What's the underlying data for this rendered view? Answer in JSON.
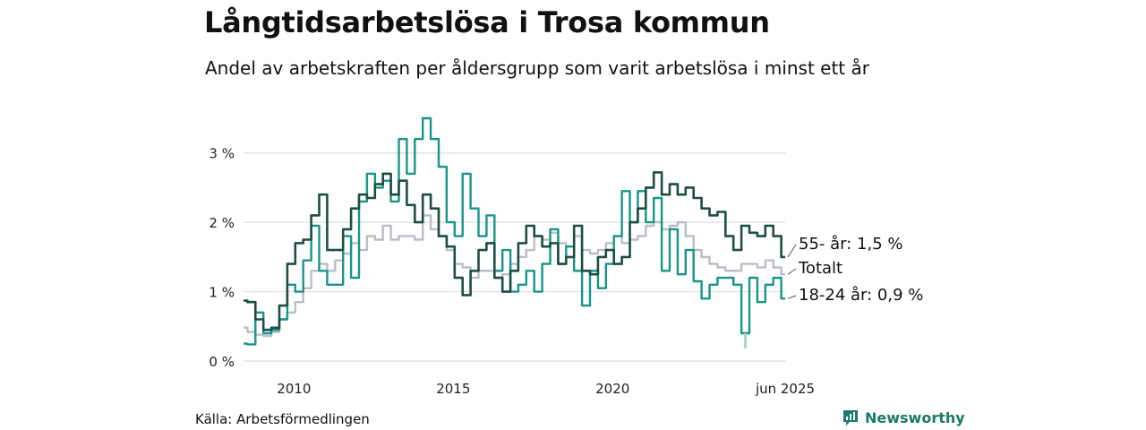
{
  "header": {
    "title": "Långtidsarbetslösa i Trosa kommun",
    "subtitle": "Andel av arbetskraften per åldersgrupp som varit arbetslösa i minst ett år"
  },
  "footer": {
    "source": "Källa: Arbetsförmedlingen",
    "brand": "Newsworthy"
  },
  "colors": {
    "s55": "#1d4d45",
    "total": "#bcbccb",
    "s18": "#17958a",
    "s18_light": "#9bd3cc",
    "grid": "#dddddd",
    "brand": "#1a7a66"
  },
  "chart_data": {
    "type": "line",
    "title": "Långtidsarbetslösa i Trosa kommun",
    "subtitle": "Andel av arbetskraften per åldersgrupp som varit arbetslösa i minst ett år",
    "xlabel": "",
    "ylabel": "",
    "x_range": [
      "2008-06",
      "2025-06"
    ],
    "ylim": [
      0,
      3.5
    ],
    "y_ticks": [
      0,
      1,
      2,
      3
    ],
    "y_tick_labels": [
      "0 %",
      "1 %",
      "2 %",
      "3 %"
    ],
    "x_ticks": [
      "2010-01",
      "2015-01",
      "2020-01",
      "2025-06"
    ],
    "x_tick_labels": [
      "2010",
      "2015",
      "2020",
      "jun 2025"
    ],
    "grid": true,
    "legend": "direct labels at line ends",
    "series": [
      {
        "name": "55- år",
        "end_label": "55- år: 1,5 %",
        "color": "#1d4d45",
        "points": [
          [
            "2008-06",
            0.87
          ],
          [
            "2008-09",
            0.85
          ],
          [
            "2008-12",
            0.6
          ],
          [
            "2009-03",
            0.45
          ],
          [
            "2009-06",
            0.48
          ],
          [
            "2009-09",
            0.8
          ],
          [
            "2009-12",
            1.4
          ],
          [
            "2010-03",
            1.7
          ],
          [
            "2010-06",
            1.75
          ],
          [
            "2010-09",
            2.1
          ],
          [
            "2010-12",
            2.4
          ],
          [
            "2011-03",
            1.6
          ],
          [
            "2011-06",
            1.6
          ],
          [
            "2011-09",
            1.9
          ],
          [
            "2011-12",
            2.2
          ],
          [
            "2012-03",
            2.4
          ],
          [
            "2012-06",
            2.35
          ],
          [
            "2012-09",
            2.55
          ],
          [
            "2012-12",
            2.7
          ],
          [
            "2013-03",
            2.4
          ],
          [
            "2013-06",
            2.6
          ],
          [
            "2013-09",
            2.25
          ],
          [
            "2013-12",
            2.0
          ],
          [
            "2014-03",
            2.4
          ],
          [
            "2014-06",
            2.2
          ],
          [
            "2014-09",
            1.8
          ],
          [
            "2014-12",
            1.65
          ],
          [
            "2015-03",
            1.2
          ],
          [
            "2015-06",
            0.95
          ],
          [
            "2015-09",
            1.3
          ],
          [
            "2015-12",
            1.6
          ],
          [
            "2016-03",
            1.7
          ],
          [
            "2016-06",
            1.2
          ],
          [
            "2016-09",
            1.0
          ],
          [
            "2016-12",
            1.3
          ],
          [
            "2017-03",
            1.7
          ],
          [
            "2017-06",
            1.95
          ],
          [
            "2017-09",
            1.8
          ],
          [
            "2017-12",
            1.65
          ],
          [
            "2018-03",
            1.7
          ],
          [
            "2018-06",
            1.4
          ],
          [
            "2018-09",
            1.5
          ],
          [
            "2018-12",
            1.95
          ],
          [
            "2019-03",
            1.3
          ],
          [
            "2019-06",
            1.25
          ],
          [
            "2019-09",
            1.5
          ],
          [
            "2019-12",
            1.6
          ],
          [
            "2020-03",
            1.4
          ],
          [
            "2020-06",
            1.5
          ],
          [
            "2020-09",
            2.0
          ],
          [
            "2020-12",
            2.2
          ],
          [
            "2021-03",
            2.5
          ],
          [
            "2021-06",
            2.72
          ],
          [
            "2021-09",
            2.4
          ],
          [
            "2021-12",
            2.55
          ],
          [
            "2022-03",
            2.4
          ],
          [
            "2022-06",
            2.5
          ],
          [
            "2022-09",
            2.35
          ],
          [
            "2022-12",
            2.2
          ],
          [
            "2023-03",
            2.1
          ],
          [
            "2023-06",
            2.15
          ],
          [
            "2023-09",
            1.8
          ],
          [
            "2023-12",
            1.6
          ],
          [
            "2024-03",
            1.95
          ],
          [
            "2024-06",
            1.85
          ],
          [
            "2024-09",
            1.8
          ],
          [
            "2024-12",
            1.95
          ],
          [
            "2025-03",
            1.8
          ],
          [
            "2025-06",
            1.5
          ]
        ]
      },
      {
        "name": "Totalt",
        "end_label": "Totalt",
        "color": "#bcbccb",
        "points": [
          [
            "2008-06",
            0.48
          ],
          [
            "2008-09",
            0.42
          ],
          [
            "2008-12",
            0.38
          ],
          [
            "2009-03",
            0.36
          ],
          [
            "2009-06",
            0.42
          ],
          [
            "2009-09",
            0.6
          ],
          [
            "2009-12",
            0.7
          ],
          [
            "2010-03",
            0.85
          ],
          [
            "2010-06",
            1.05
          ],
          [
            "2010-09",
            1.3
          ],
          [
            "2010-12",
            1.4
          ],
          [
            "2011-03",
            1.3
          ],
          [
            "2011-06",
            1.45
          ],
          [
            "2011-09",
            1.55
          ],
          [
            "2011-12",
            1.7
          ],
          [
            "2012-03",
            1.6
          ],
          [
            "2012-06",
            1.8
          ],
          [
            "2012-09",
            1.75
          ],
          [
            "2012-12",
            1.95
          ],
          [
            "2013-03",
            1.75
          ],
          [
            "2013-06",
            1.8
          ],
          [
            "2013-09",
            1.8
          ],
          [
            "2013-12",
            1.75
          ],
          [
            "2014-03",
            2.1
          ],
          [
            "2014-06",
            1.9
          ],
          [
            "2014-09",
            1.8
          ],
          [
            "2014-12",
            1.6
          ],
          [
            "2015-03",
            1.4
          ],
          [
            "2015-06",
            1.35
          ],
          [
            "2015-09",
            1.2
          ],
          [
            "2015-12",
            1.3
          ],
          [
            "2016-03",
            1.3
          ],
          [
            "2016-06",
            1.2
          ],
          [
            "2016-09",
            1.25
          ],
          [
            "2016-12",
            1.4
          ],
          [
            "2017-03",
            1.5
          ],
          [
            "2017-06",
            1.6
          ],
          [
            "2017-09",
            1.8
          ],
          [
            "2017-12",
            1.75
          ],
          [
            "2018-03",
            1.85
          ],
          [
            "2018-06",
            1.7
          ],
          [
            "2018-09",
            1.65
          ],
          [
            "2018-12",
            1.8
          ],
          [
            "2019-03",
            1.6
          ],
          [
            "2019-06",
            1.55
          ],
          [
            "2019-09",
            1.6
          ],
          [
            "2019-12",
            1.7
          ],
          [
            "2020-03",
            1.8
          ],
          [
            "2020-06",
            1.7
          ],
          [
            "2020-09",
            1.75
          ],
          [
            "2020-12",
            1.8
          ],
          [
            "2021-03",
            1.95
          ],
          [
            "2021-06",
            2.0
          ],
          [
            "2021-09",
            1.9
          ],
          [
            "2021-12",
            1.95
          ],
          [
            "2022-03",
            2.0
          ],
          [
            "2022-06",
            1.8
          ],
          [
            "2022-09",
            1.6
          ],
          [
            "2022-12",
            1.5
          ],
          [
            "2023-03",
            1.4
          ],
          [
            "2023-06",
            1.35
          ],
          [
            "2023-09",
            1.3
          ],
          [
            "2023-12",
            1.3
          ],
          [
            "2024-03",
            1.4
          ],
          [
            "2024-06",
            1.4
          ],
          [
            "2024-09",
            1.35
          ],
          [
            "2024-12",
            1.45
          ],
          [
            "2025-03",
            1.35
          ],
          [
            "2025-06",
            1.25
          ]
        ]
      },
      {
        "name": "18-24 år",
        "end_label": "18-24 år: 0,9 %",
        "color": "#17958a",
        "points": [
          [
            "2008-06",
            0.25
          ],
          [
            "2008-09",
            0.24
          ],
          [
            "2008-12",
            0.7
          ],
          [
            "2009-03",
            0.4
          ],
          [
            "2009-06",
            0.45
          ],
          [
            "2009-09",
            0.6
          ],
          [
            "2009-12",
            1.1
          ],
          [
            "2010-03",
            1.0
          ],
          [
            "2010-06",
            1.45
          ],
          [
            "2010-09",
            1.95
          ],
          [
            "2010-12",
            1.3
          ],
          [
            "2011-03",
            1.1
          ],
          [
            "2011-06",
            1.1
          ],
          [
            "2011-09",
            1.8
          ],
          [
            "2011-12",
            1.2
          ],
          [
            "2012-03",
            2.3
          ],
          [
            "2012-06",
            2.7
          ],
          [
            "2012-09",
            2.5
          ],
          [
            "2012-12",
            2.6
          ],
          [
            "2013-03",
            2.3
          ],
          [
            "2013-06",
            3.2
          ],
          [
            "2013-09",
            2.7
          ],
          [
            "2013-12",
            3.2
          ],
          [
            "2014-03",
            3.5
          ],
          [
            "2014-06",
            3.2
          ],
          [
            "2014-09",
            2.8
          ],
          [
            "2014-12",
            2.0
          ],
          [
            "2015-03",
            1.8
          ],
          [
            "2015-06",
            2.7
          ],
          [
            "2015-09",
            2.2
          ],
          [
            "2015-12",
            1.8
          ],
          [
            "2016-03",
            2.1
          ],
          [
            "2016-06",
            1.3
          ],
          [
            "2016-09",
            1.6
          ],
          [
            "2016-12",
            1.0
          ],
          [
            "2017-03",
            1.1
          ],
          [
            "2017-06",
            1.3
          ],
          [
            "2017-09",
            1.0
          ],
          [
            "2017-12",
            1.4
          ],
          [
            "2018-03",
            1.9
          ],
          [
            "2018-06",
            1.4
          ],
          [
            "2018-09",
            1.65
          ],
          [
            "2018-12",
            1.3
          ],
          [
            "2019-03",
            0.8
          ],
          [
            "2019-06",
            1.3
          ],
          [
            "2019-09",
            1.05
          ],
          [
            "2019-12",
            1.4
          ],
          [
            "2020-03",
            1.8
          ],
          [
            "2020-06",
            2.45
          ],
          [
            "2020-09",
            2.0
          ],
          [
            "2020-12",
            2.45
          ],
          [
            "2021-03",
            2.0
          ],
          [
            "2021-06",
            2.35
          ],
          [
            "2021-09",
            1.3
          ],
          [
            "2021-12",
            1.9
          ],
          [
            "2022-03",
            1.25
          ],
          [
            "2022-06",
            1.6
          ],
          [
            "2022-09",
            1.15
          ],
          [
            "2022-12",
            0.9
          ],
          [
            "2023-03",
            1.1
          ],
          [
            "2023-06",
            1.2
          ],
          [
            "2023-09",
            1.2
          ],
          [
            "2023-12",
            1.1
          ],
          [
            "2024-03",
            0.4
          ],
          [
            "2024-06",
            1.2
          ],
          [
            "2024-09",
            0.85
          ],
          [
            "2024-12",
            1.1
          ],
          [
            "2025-03",
            1.2
          ],
          [
            "2025-06",
            0.9
          ]
        ]
      }
    ],
    "uncertain_points": [
      [
        "2024-03",
        0.18
      ]
    ]
  }
}
